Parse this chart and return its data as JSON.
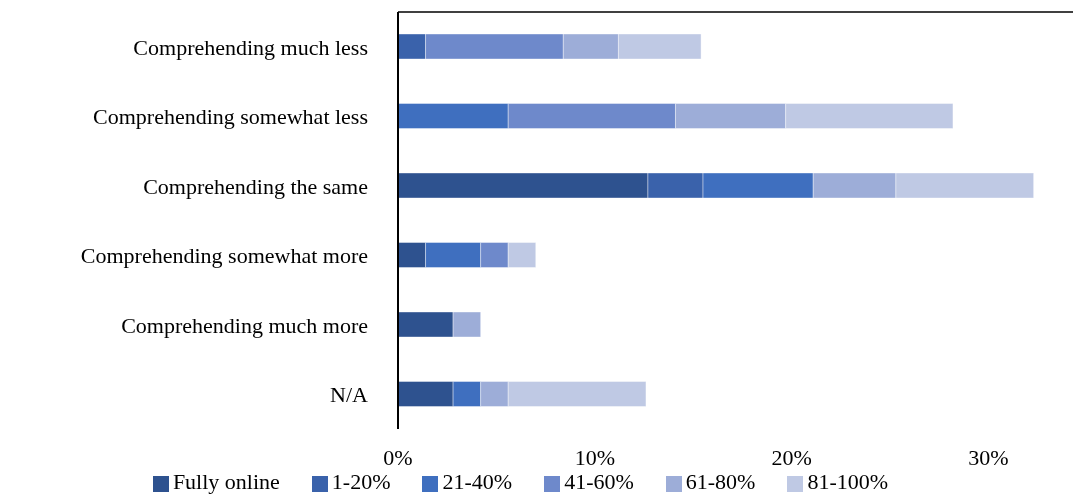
{
  "chart_data": {
    "type": "bar",
    "orientation": "horizontal",
    "stacked": true,
    "categories": [
      "Comprehending much less",
      "Comprehending somewhat less",
      "Comprehending the same",
      "Comprehending somewhat more",
      "Comprehending much more",
      "N/A"
    ],
    "series": [
      {
        "name": "Fully online",
        "color": "#2e528f",
        "values": [
          null,
          null,
          12.7,
          1.4,
          2.8,
          2.8
        ]
      },
      {
        "name": "1-20%",
        "color": "#3a62ab",
        "values": [
          1.4,
          null,
          2.8,
          null,
          null,
          null
        ]
      },
      {
        "name": "21-40%",
        "color": "#3f6fbf",
        "values": [
          null,
          5.6,
          5.6,
          2.8,
          null,
          1.4
        ]
      },
      {
        "name": "41-60%",
        "color": "#6e89cb",
        "values": [
          7.0,
          8.5,
          null,
          1.4,
          null,
          null
        ]
      },
      {
        "name": "61-80%",
        "color": "#9dadd8",
        "values": [
          2.8,
          5.6,
          4.2,
          null,
          1.4,
          1.4
        ]
      },
      {
        "name": "81-100%",
        "color": "#bfc9e4",
        "values": [
          4.2,
          8.5,
          7.0,
          1.4,
          null,
          7.0
        ]
      }
    ],
    "xlim": [
      0,
      34.3
    ],
    "xticks": [
      {
        "value": 0,
        "label": "0%"
      },
      {
        "value": 10,
        "label": "10%"
      },
      {
        "value": 20,
        "label": "20%"
      },
      {
        "value": 30,
        "label": "30%"
      }
    ],
    "grid": false,
    "legend": "bottom"
  }
}
